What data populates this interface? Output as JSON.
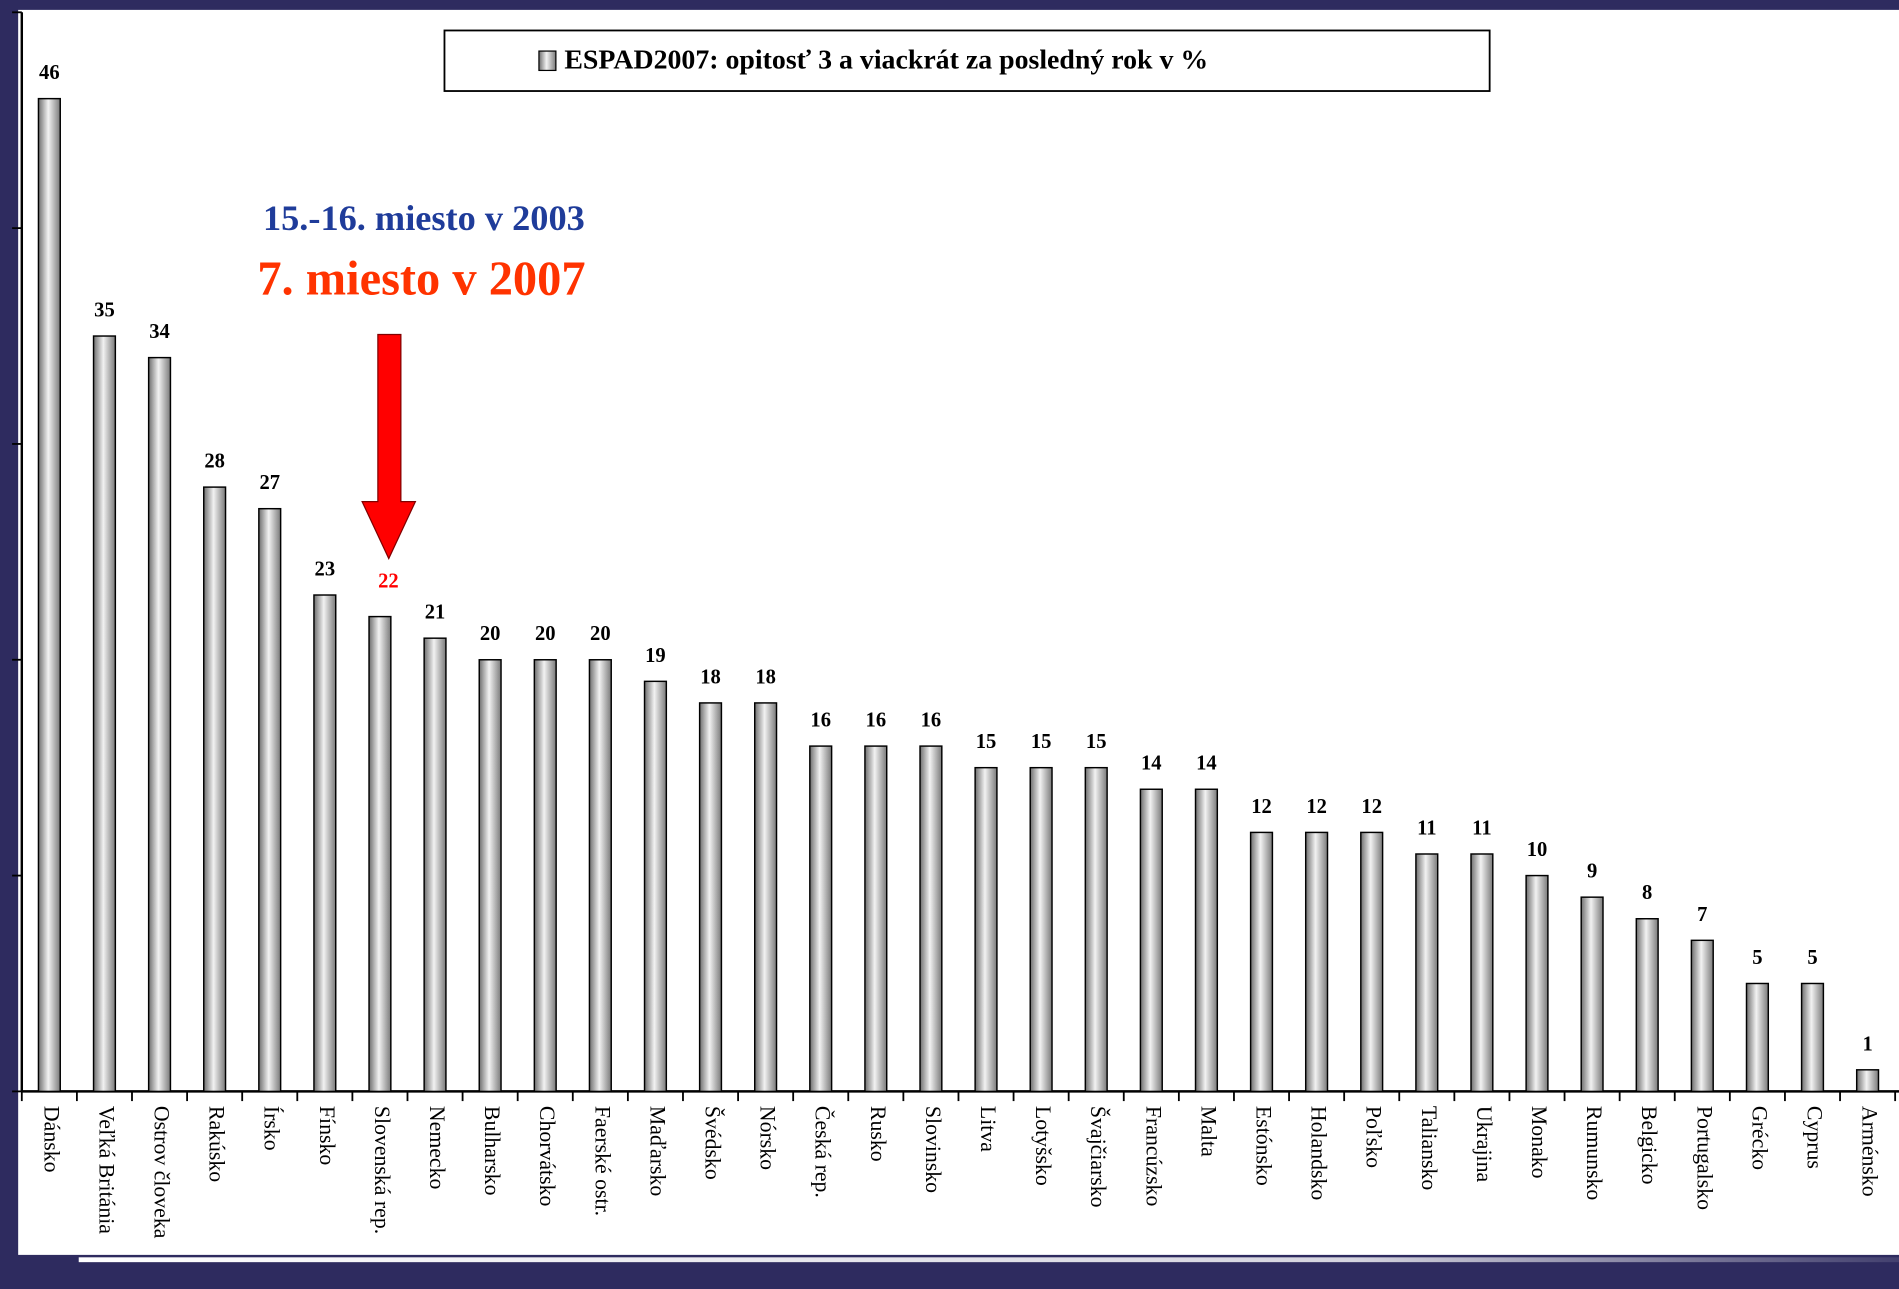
{
  "chart_data": {
    "type": "bar",
    "legend_title": "ESPAD2007: opitosť 3 a viackrát za posledný rok v %",
    "annotations": [
      "15.-16. miesto v 2003",
      "7. miesto v 2007"
    ],
    "categories": [
      "Dánsko",
      "Veľká Británia",
      "Ostrov človeka",
      "Rakúsko",
      "Írsko",
      "Fínsko",
      "Slovenská rep.",
      "Nemecko",
      "Bulharsko",
      "Chorvátsko",
      "Faerské ostr.",
      "Maďarsko",
      "Švédsko",
      "Nórsko",
      "Česká rep.",
      "Rusko",
      "Slovinsko",
      "Litva",
      "Lotyšsko",
      "Švajčiarsko",
      "Francúzsko",
      "Malta",
      "Estónsko",
      "Holandsko",
      "Poľsko",
      "Taliansko",
      "Ukrajina",
      "Monako",
      "Rumunsko",
      "Belgicko",
      "Portugalsko",
      "Grécko",
      "Cyprus",
      "Arménsko"
    ],
    "values": [
      46,
      35,
      34,
      28,
      27,
      23,
      22,
      21,
      20,
      20,
      20,
      19,
      18,
      18,
      16,
      16,
      16,
      15,
      15,
      15,
      14,
      14,
      12,
      12,
      12,
      11,
      11,
      10,
      9,
      8,
      7,
      5,
      5,
      1
    ],
    "color": "#b0b0b0",
    "highlight": 6,
    "ylim": [
      0,
      50
    ],
    "yticks": [
      0,
      10,
      20,
      30,
      40,
      50
    ],
    "grid": false
  }
}
